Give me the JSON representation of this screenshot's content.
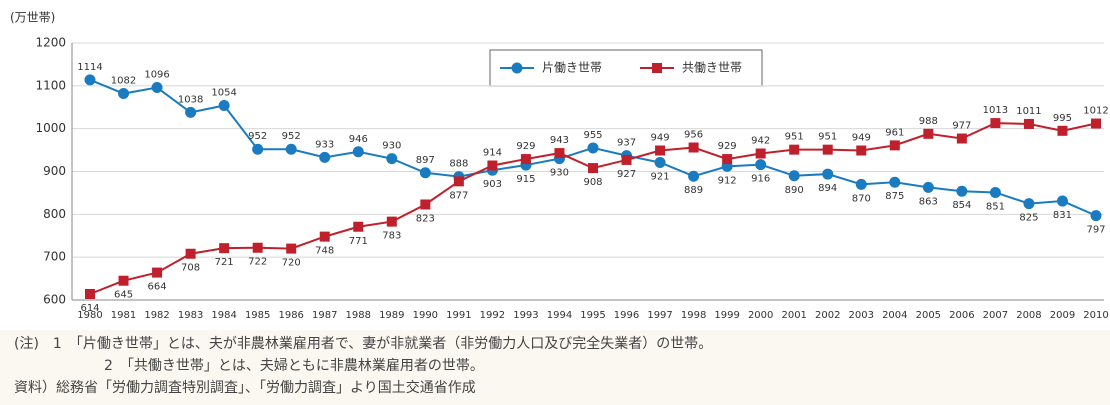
{
  "chart_data": {
    "type": "line",
    "y_axis_label": "(万世帯)",
    "x": [
      "1980",
      "1981",
      "1982",
      "1983",
      "1984",
      "1985",
      "1986",
      "1987",
      "1988",
      "1989",
      "1990",
      "1991",
      "1992",
      "1993",
      "1994",
      "1995",
      "1996",
      "1997",
      "1998",
      "1999",
      "2000",
      "2001",
      "2002",
      "2003",
      "2004",
      "2005",
      "2006",
      "2007",
      "2008",
      "2009",
      "2010"
    ],
    "series": [
      {
        "name": "片働き世帯",
        "color": "#1b7bc1",
        "marker": "circle",
        "values": [
          1114,
          1082,
          1096,
          1038,
          1054,
          952,
          952,
          933,
          946,
          930,
          897,
          888,
          903,
          915,
          930,
          955,
          937,
          921,
          889,
          912,
          916,
          890,
          894,
          870,
          875,
          863,
          854,
          851,
          825,
          831,
          797
        ]
      },
      {
        "name": "共働き世帯",
        "color": "#c0202c",
        "marker": "square",
        "values": [
          614,
          645,
          664,
          708,
          721,
          722,
          720,
          748,
          771,
          783,
          823,
          877,
          914,
          929,
          943,
          908,
          927,
          949,
          956,
          929,
          942,
          951,
          951,
          949,
          961,
          988,
          977,
          1013,
          1011,
          995,
          1012
        ]
      }
    ],
    "ylim": [
      600,
      1200
    ],
    "yticks": [
      600,
      700,
      800,
      900,
      1000,
      1100,
      1200
    ],
    "grid": true,
    "notes": [
      "(注)　1　「片働き世帯」とは、夫が非農林業雇用者で、妻が非就業者（非労働力人口及び完全失業者）の世帯。",
      "2　「共働き世帯」とは、夫婦ともに非農林業雇用者の世帯。",
      "資料）総務省「労働力調査特別調査」、「労働力調査」より国土交通省作成"
    ]
  }
}
